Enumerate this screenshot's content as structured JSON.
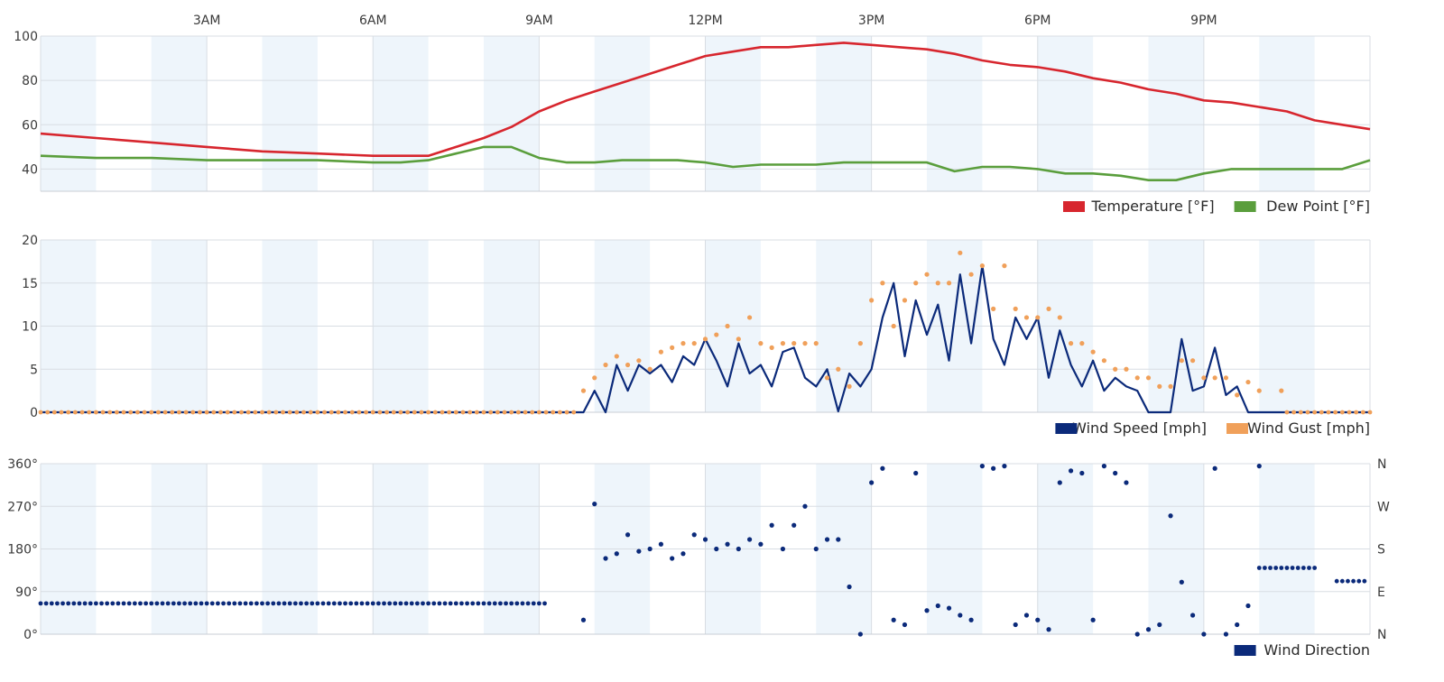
{
  "x_axis": {
    "ticks": [
      {
        "hour": 3,
        "label": "3AM"
      },
      {
        "hour": 6,
        "label": "6AM"
      },
      {
        "hour": 9,
        "label": "9AM"
      },
      {
        "hour": 12,
        "label": "12PM"
      },
      {
        "hour": 15,
        "label": "3PM"
      },
      {
        "hour": 18,
        "label": "6PM"
      },
      {
        "hour": 21,
        "label": "9PM"
      }
    ],
    "range_hours": [
      0,
      24
    ]
  },
  "colors": {
    "temperature": "#d7262e",
    "dew_point": "#5a9e3c",
    "wind_speed": "#0b2a7a",
    "wind_gust": "#f0a05a",
    "wind_direction": "#0b2a7a",
    "band": "#eef5fb",
    "grid": "#d8dde3"
  },
  "chart_data": [
    {
      "type": "line",
      "ylim": [
        30,
        100
      ],
      "yticks": [
        40,
        60,
        80,
        100
      ],
      "legend_placement": "bottom-right",
      "legend": [
        {
          "key": "temperature",
          "label": "Temperature [°F]"
        },
        {
          "key": "dew_point",
          "label": "Dew Point [°F]"
        }
      ],
      "series": [
        {
          "name": "Temperature [°F]",
          "key": "temperature",
          "x": [
            0,
            1,
            2,
            3,
            4,
            5,
            6,
            6.5,
            7,
            7.5,
            8,
            8.5,
            9,
            9.5,
            10,
            10.5,
            11,
            11.5,
            12,
            12.5,
            13,
            13.5,
            14,
            14.5,
            15,
            15.5,
            16,
            16.5,
            17,
            17.5,
            18,
            18.5,
            19,
            19.5,
            20,
            20.5,
            21,
            21.5,
            22,
            22.5,
            23,
            23.5,
            24
          ],
          "y": [
            56,
            54,
            52,
            50,
            48,
            47,
            46,
            46,
            46,
            50,
            54,
            59,
            66,
            71,
            75,
            79,
            83,
            87,
            91,
            93,
            95,
            95,
            96,
            97,
            96,
            95,
            94,
            92,
            89,
            87,
            86,
            84,
            81,
            79,
            76,
            74,
            71,
            70,
            68,
            66,
            62,
            60,
            58
          ]
        },
        {
          "name": "Dew Point [°F]",
          "key": "dew_point",
          "x": [
            0,
            1,
            2,
            3,
            4,
            5,
            6,
            6.5,
            7,
            7.5,
            8,
            8.5,
            9,
            9.5,
            10,
            10.5,
            11,
            11.5,
            12,
            12.5,
            13,
            13.5,
            14,
            14.5,
            15,
            15.5,
            16,
            16.5,
            17,
            17.5,
            18,
            18.5,
            19,
            19.5,
            20,
            20.5,
            21,
            21.5,
            22,
            22.5,
            23,
            23.5,
            24
          ],
          "y": [
            46,
            45,
            45,
            44,
            44,
            44,
            43,
            43,
            44,
            47,
            50,
            50,
            45,
            43,
            43,
            44,
            44,
            44,
            43,
            41,
            42,
            42,
            42,
            43,
            43,
            43,
            43,
            39,
            41,
            41,
            40,
            38,
            38,
            37,
            35,
            35,
            38,
            40,
            40,
            40,
            40,
            40,
            44
          ]
        }
      ]
    },
    {
      "type": "line",
      "ylim": [
        0,
        20
      ],
      "yticks": [
        0,
        5,
        10,
        15,
        20
      ],
      "legend_placement": "bottom-right",
      "legend": [
        {
          "key": "wind_speed",
          "label": "Wind Speed [mph]"
        },
        {
          "key": "wind_gust",
          "label": "Wind Gust [mph]"
        }
      ],
      "series": [
        {
          "name": "Wind Speed [mph]",
          "key": "wind_speed",
          "style": "line",
          "x": [
            0,
            9.8,
            10.0,
            10.2,
            10.4,
            10.6,
            10.8,
            11.0,
            11.2,
            11.4,
            11.6,
            11.8,
            12.0,
            12.2,
            12.4,
            12.6,
            12.8,
            13.0,
            13.2,
            13.4,
            13.6,
            13.8,
            14.0,
            14.2,
            14.4,
            14.6,
            14.8,
            15.0,
            15.2,
            15.4,
            15.6,
            15.8,
            16.0,
            16.2,
            16.4,
            16.6,
            16.8,
            17.0,
            17.2,
            17.4,
            17.6,
            17.8,
            18.0,
            18.2,
            18.4,
            18.6,
            18.8,
            19.0,
            19.2,
            19.4,
            19.6,
            19.8,
            20.0,
            20.2,
            20.4,
            20.6,
            20.8,
            21.0,
            21.2,
            21.4,
            21.6,
            21.8,
            22.0,
            24
          ],
          "y": [
            0,
            0,
            2.5,
            0,
            5.5,
            2.5,
            5.5,
            4.5,
            5.5,
            3.5,
            6.5,
            5.5,
            8.5,
            6,
            3,
            8,
            4.5,
            5.5,
            3,
            7,
            7.5,
            4,
            3,
            5,
            0.1,
            4.5,
            3,
            5,
            11,
            15,
            6.5,
            13,
            9,
            12.5,
            6,
            16,
            8,
            17,
            8.5,
            5.5,
            11,
            8.5,
            11,
            4,
            9.5,
            5.5,
            3,
            6,
            2.5,
            4,
            3,
            2.5,
            0,
            0,
            0,
            8.5,
            2.5,
            3,
            7.5,
            2,
            3,
            0,
            0,
            0
          ]
        },
        {
          "name": "Wind Gust [mph]",
          "key": "wind_gust",
          "style": "dots",
          "x": [
            9.8,
            10.0,
            10.2,
            10.4,
            10.6,
            10.8,
            11.0,
            11.2,
            11.4,
            11.6,
            11.8,
            12.0,
            12.2,
            12.4,
            12.6,
            12.8,
            13.0,
            13.2,
            13.4,
            13.6,
            13.8,
            14.0,
            14.2,
            14.4,
            14.6,
            14.8,
            15.0,
            15.2,
            15.4,
            15.6,
            15.8,
            16.0,
            16.2,
            16.4,
            16.6,
            16.8,
            17.0,
            17.2,
            17.4,
            17.6,
            17.8,
            18.0,
            18.2,
            18.4,
            18.6,
            18.8,
            19.0,
            19.2,
            19.4,
            19.6,
            19.8,
            20.0,
            20.2,
            20.4,
            20.6,
            20.8,
            21.0,
            21.2,
            21.4,
            21.6,
            21.8,
            22.0,
            22.4
          ],
          "y": [
            2.5,
            4,
            5.5,
            6.5,
            5.5,
            6,
            5,
            7,
            7.5,
            8,
            8,
            8.5,
            9,
            10,
            8.5,
            11,
            8,
            7.5,
            8,
            8,
            8,
            8,
            4,
            5,
            3,
            8,
            13,
            15,
            10,
            13,
            15,
            16,
            15,
            15,
            18.5,
            16,
            17,
            12,
            17,
            12,
            11,
            11,
            12,
            11,
            8,
            8,
            7,
            6,
            5,
            5,
            4,
            4,
            3,
            3,
            6,
            6,
            4,
            4,
            4,
            2,
            3.5,
            2.5,
            2.5
          ]
        }
      ]
    },
    {
      "type": "scatter",
      "ylim": [
        0,
        360
      ],
      "yticks": [
        {
          "value": 0,
          "label": "0°",
          "right": "N"
        },
        {
          "value": 90,
          "label": "90°",
          "right": "E"
        },
        {
          "value": 180,
          "label": "180°",
          "right": "S"
        },
        {
          "value": 270,
          "label": "270°",
          "right": "W"
        },
        {
          "value": 360,
          "label": "360°",
          "right": "N"
        }
      ],
      "legend_placement": "bottom-right",
      "legend": [
        {
          "key": "wind_direction",
          "label": "Wind Direction"
        }
      ],
      "series": [
        {
          "name": "Wind Direction",
          "key": "wind_direction",
          "x": [
            9.8,
            10.0,
            10.2,
            10.4,
            10.6,
            10.8,
            11.0,
            11.2,
            11.4,
            11.6,
            11.8,
            12.0,
            12.2,
            12.4,
            12.6,
            12.8,
            13.0,
            13.2,
            13.4,
            13.6,
            13.8,
            14.0,
            14.2,
            14.4,
            14.6,
            14.8,
            15.0,
            15.2,
            15.4,
            15.6,
            15.8,
            16.0,
            16.2,
            16.4,
            16.6,
            16.8,
            17.0,
            17.2,
            17.4,
            17.6,
            17.8,
            18.0,
            18.2,
            18.4,
            18.6,
            18.8,
            19.0,
            19.2,
            19.4,
            19.6,
            19.8,
            20.0,
            20.2,
            20.4,
            20.6,
            20.8,
            21.0,
            21.2,
            21.4,
            21.6,
            21.8,
            22.0
          ],
          "y": [
            30,
            275,
            160,
            170,
            210,
            175,
            180,
            190,
            160,
            170,
            210,
            200,
            180,
            190,
            180,
            200,
            190,
            230,
            180,
            230,
            270,
            180,
            200,
            200,
            100,
            0,
            320,
            350,
            30,
            20,
            340,
            50,
            60,
            55,
            40,
            30,
            355,
            350,
            355,
            20,
            40,
            30,
            10,
            320,
            345,
            340,
            30,
            355,
            340,
            320,
            0,
            10,
            20,
            250,
            110,
            40,
            0,
            350,
            0,
            20,
            60,
            355
          ]
        }
      ]
    }
  ]
}
